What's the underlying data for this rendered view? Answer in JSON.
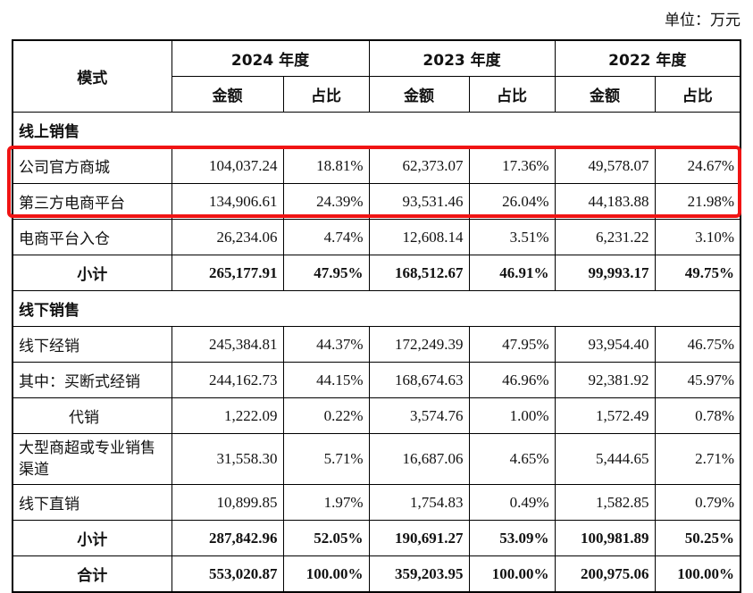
{
  "unit_label": "单位：万元",
  "header": {
    "mode": "模式",
    "years": [
      "2024 年度",
      "2023 年度",
      "2022 年度"
    ],
    "amount": "金额",
    "ratio": "占比"
  },
  "sections": {
    "online": "线上销售",
    "offline": "线下销售"
  },
  "rows": [
    {
      "name": "公司官方商城",
      "values": [
        "104,037.24",
        "18.81%",
        "62,373.07",
        "17.36%",
        "49,578.07",
        "24.67%"
      ]
    },
    {
      "name": "第三方电商平台",
      "values": [
        "134,906.61",
        "24.39%",
        "93,531.46",
        "26.04%",
        "44,183.88",
        "21.98%"
      ]
    },
    {
      "name": "电商平台入仓",
      "values": [
        "26,234.06",
        "4.74%",
        "12,608.14",
        "3.51%",
        "6,231.22",
        "3.10%"
      ]
    },
    {
      "name": "小计",
      "values": [
        "265,177.91",
        "47.95%",
        "168,512.67",
        "46.91%",
        "99,993.17",
        "49.75%"
      ]
    },
    {
      "name": "线下经销",
      "values": [
        "245,384.81",
        "44.37%",
        "172,249.39",
        "47.95%",
        "93,954.40",
        "46.75%"
      ]
    },
    {
      "name": "其中：买断式经销",
      "values": [
        "244,162.73",
        "44.15%",
        "168,674.63",
        "46.96%",
        "92,381.92",
        "45.97%"
      ]
    },
    {
      "name": "代销",
      "values": [
        "1,222.09",
        "0.22%",
        "3,574.76",
        "1.00%",
        "1,572.49",
        "0.78%"
      ]
    },
    {
      "name": "大型商超或专业销售渠道",
      "values": [
        "31,558.30",
        "5.71%",
        "16,687.06",
        "4.65%",
        "5,444.65",
        "2.71%"
      ]
    },
    {
      "name": "线下直销",
      "values": [
        "10,899.85",
        "1.97%",
        "1,754.83",
        "0.49%",
        "1,582.85",
        "0.79%"
      ]
    },
    {
      "name": "小计",
      "values": [
        "287,842.96",
        "52.05%",
        "190,691.27",
        "53.09%",
        "100,981.89",
        "50.25%"
      ]
    },
    {
      "name": "合计",
      "values": [
        "553,020.87",
        "100.00%",
        "359,203.95",
        "100.00%",
        "200,975.06",
        "100.00%"
      ]
    }
  ],
  "highlight_color": "#f01414"
}
